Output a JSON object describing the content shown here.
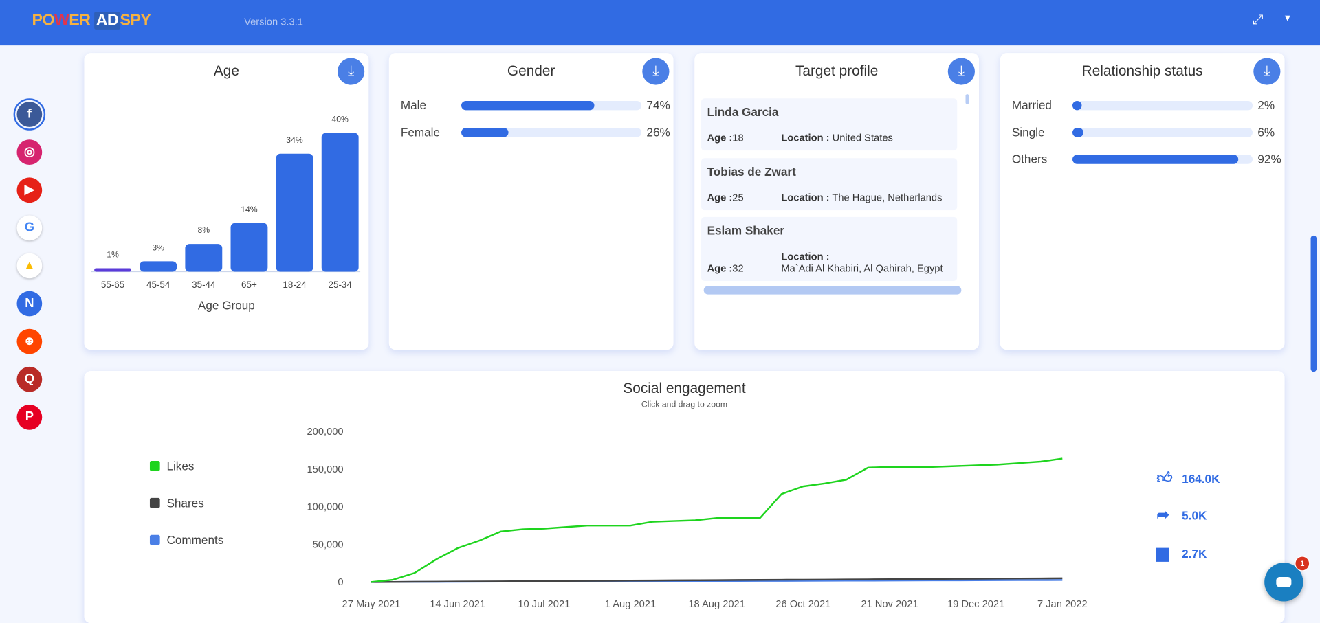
{
  "header": {
    "logo": {
      "p1": "PO",
      "w": "W",
      "p2": "ER",
      "ad": "AD",
      "spy": "SPY"
    },
    "version": "Version 3.3.1",
    "icons": [
      "expand-icon",
      "caret-down-icon"
    ]
  },
  "sidebar": {
    "items": [
      {
        "name": "facebook",
        "glyph": "f",
        "color": "#3b5998",
        "active": true
      },
      {
        "name": "instagram",
        "glyph": "◎",
        "color": "#d6246f"
      },
      {
        "name": "youtube",
        "glyph": "▶",
        "color": "#e62117"
      },
      {
        "name": "google",
        "glyph": "G",
        "color": "#ffffff",
        "fg": "#4285f4"
      },
      {
        "name": "google-ads",
        "glyph": "▲",
        "color": "#ffffff",
        "fg": "#fbbc04"
      },
      {
        "name": "native",
        "glyph": "N",
        "color": "#316be3"
      },
      {
        "name": "reddit",
        "glyph": "☻",
        "color": "#ff4500"
      },
      {
        "name": "quora",
        "glyph": "Q",
        "color": "#b92b27"
      },
      {
        "name": "pinterest",
        "glyph": "P",
        "color": "#e60023"
      }
    ]
  },
  "age": {
    "title": "Age",
    "xlabel": "Age Group",
    "chart_data": {
      "type": "bar",
      "categories": [
        "55-65",
        "45-54",
        "35-44",
        "65+",
        "18-24",
        "25-34"
      ],
      "values": [
        1,
        3,
        8,
        14,
        34,
        40
      ],
      "labels": [
        "1%",
        "3%",
        "8%",
        "14%",
        "34%",
        "40%"
      ],
      "xlabel": "Age Group",
      "colors": [
        "#5b3bd9",
        "#316be3",
        "#316be3",
        "#316be3",
        "#316be3",
        "#316be3"
      ]
    }
  },
  "gender": {
    "title": "Gender",
    "rows": [
      {
        "label": "Male",
        "value": 74,
        "text": "74%"
      },
      {
        "label": "Female",
        "value": 26,
        "text": "26%"
      }
    ]
  },
  "target": {
    "title": "Target profile",
    "age_label": "Age :",
    "loc_label": "Location :",
    "profiles": [
      {
        "name": "Linda Garcia",
        "age": "18",
        "location": "United States"
      },
      {
        "name": "Tobias de Zwart",
        "age": "25",
        "location": "The Hague, Netherlands"
      },
      {
        "name": "Eslam Shaker",
        "age": "32",
        "location": "Ma`Adi Al Khabiri, Al Qahirah, Egypt"
      }
    ]
  },
  "relationship": {
    "title": "Relationship status",
    "rows": [
      {
        "label": "Married",
        "value": 2,
        "text": "2%"
      },
      {
        "label": "Single",
        "value": 6,
        "text": "6%"
      },
      {
        "label": "Others",
        "value": 92,
        "text": "92%"
      }
    ]
  },
  "engagement": {
    "title": "Social engagement",
    "subtitle": "Click and drag to zoom",
    "legend": [
      {
        "label": "Likes",
        "color": "#1ed41e"
      },
      {
        "label": "Shares",
        "color": "#444444"
      },
      {
        "label": "Comments",
        "color": "#4a7fe6"
      }
    ],
    "totals": [
      {
        "icon": "thumbs-up-icon",
        "value": "164.0K"
      },
      {
        "icon": "share-icon",
        "value": "5.0K"
      },
      {
        "icon": "comment-icon",
        "value": "2.7K"
      }
    ],
    "chart_data": {
      "type": "line",
      "x_ticks": [
        "27 May 2021",
        "14 Jun 2021",
        "10 Jul 2021",
        "1 Aug 2021",
        "18 Aug 2021",
        "26 Oct 2021",
        "21 Nov 2021",
        "19 Dec 2021",
        "7 Jan 2022"
      ],
      "y_ticks": [
        "0",
        "50,000",
        "100,000",
        "150,000",
        "200,000"
      ],
      "ylim": [
        0,
        200000
      ],
      "grid": false,
      "series": [
        {
          "name": "Likes",
          "color": "#1ed41e",
          "values": [
            0,
            3000,
            12000,
            30000,
            45000,
            55000,
            67000,
            70000,
            71000,
            73000,
            75000,
            75000,
            75000,
            80000,
            81000,
            82000,
            85000,
            85000,
            85000,
            117000,
            127000,
            131000,
            136000,
            152000,
            153000,
            153000,
            153000,
            154000,
            155000,
            156000,
            158000,
            160000,
            164000
          ]
        },
        {
          "name": "Shares",
          "color": "#444444",
          "values_start": 0,
          "values_end": 5000
        },
        {
          "name": "Comments",
          "color": "#4a7fe6",
          "values_start": 0,
          "values_end": 2700
        }
      ]
    }
  },
  "chat": {
    "badge": "1"
  }
}
